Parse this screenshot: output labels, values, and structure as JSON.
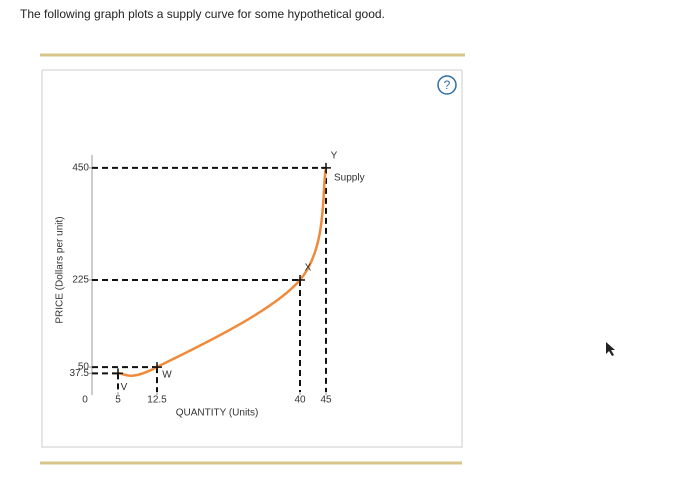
{
  "prompt": "The following graph plots a supply curve for some hypothetical good.",
  "chart_data": {
    "type": "line",
    "x_label": "QUANTITY (Units)",
    "y_label": "PRICE (Dollars per unit)",
    "xlim": [
      0,
      50
    ],
    "ylim": [
      0,
      500
    ],
    "xticks": [
      0,
      5,
      12.5,
      40,
      45
    ],
    "yticks": [
      37.5,
      50,
      225,
      450
    ],
    "series": [
      {
        "name": "Supply",
        "color": "#f08a3a",
        "x": [
          5,
          12.5,
          40,
          45
        ],
        "values": [
          37.5,
          50,
          225,
          450
        ],
        "point_labels": [
          "V",
          "W",
          "X",
          "Y"
        ]
      }
    ]
  }
}
